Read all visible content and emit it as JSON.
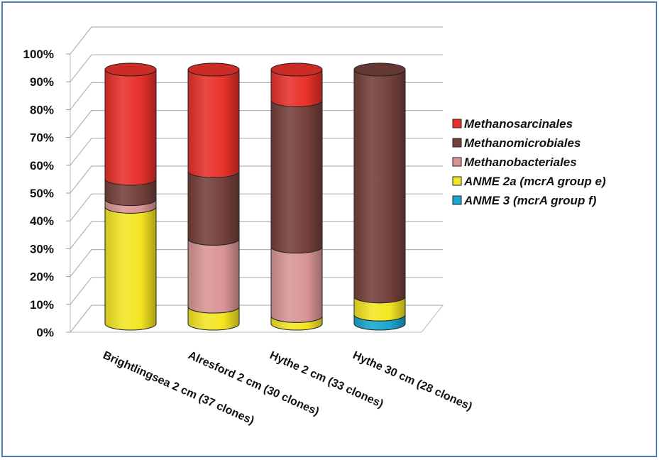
{
  "chart_data": {
    "type": "bar",
    "stacked": true,
    "percent": true,
    "style": "3d-cylinder",
    "categories": [
      "Brightlingsea 2 cm (37 clones)",
      "Alresford 2 cm (30 clones)",
      "Hythe 2 cm (33 clones)",
      "Hythe 30 cm (28 clones)"
    ],
    "ylim": [
      0,
      100
    ],
    "yticks": [
      "0%",
      "10%",
      "20%",
      "30%",
      "40%",
      "50%",
      "60%",
      "70%",
      "80%",
      "90%",
      "100%"
    ],
    "series": [
      {
        "name": "ANME 3 (mcrA group f)",
        "color": "#1aa6cf",
        "values": [
          0,
          0,
          0,
          3.6
        ]
      },
      {
        "name": "ANME 2a (mcrA group e)",
        "color": "#f4e522",
        "values": [
          46,
          6.7,
          3,
          7.1
        ]
      },
      {
        "name": "Methanobacteriales",
        "color": "#d99595",
        "values": [
          3,
          26.7,
          27.3,
          0
        ]
      },
      {
        "name": "Methanomicrobiales",
        "color": "#74403a",
        "values": [
          8,
          26.6,
          57.6,
          89.3
        ]
      },
      {
        "name": "Methanosarcinales",
        "color": "#e8302a",
        "values": [
          43,
          40,
          12.1,
          0
        ]
      }
    ],
    "legend": {
      "position": "right",
      "order": [
        "Methanosarcinales",
        "Methanomicrobiales",
        "Methanobacteriales",
        "ANME 2a (mcrA group e)",
        "ANME 3 (mcrA group f)"
      ]
    },
    "grid": true
  }
}
